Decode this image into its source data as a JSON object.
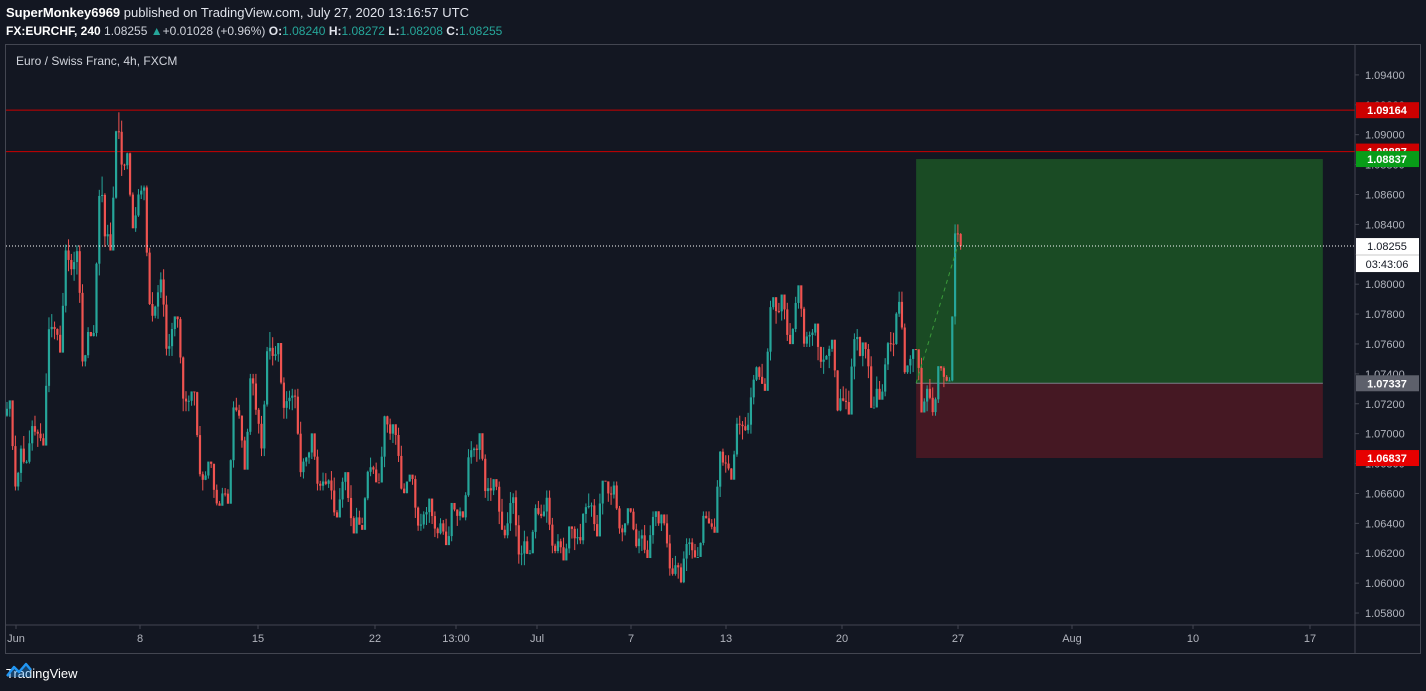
{
  "header": {
    "author": "SuperMonkey6969",
    "published": "published on TradingView.com, July 27, 2020 13:16:57 UTC",
    "symbol": "FX:EURCHF, 240",
    "last": "1.08255",
    "change": "+0.01028 (+0.96%)",
    "o_label": "O:",
    "o_value": "1.08240",
    "h_label": "H:",
    "h_value": "1.08272",
    "l_label": "L:",
    "l_value": "1.08208",
    "c_label": "C:",
    "c_value": "1.08255"
  },
  "footer": {
    "brand": "TradingView"
  },
  "chart_data": {
    "type": "candlestick",
    "title": "Euro / Swiss Franc, 4h, FXCM",
    "ylim": [
      1.0572,
      1.096
    ],
    "y_ticks": [
      "1.09400",
      "1.09200",
      "1.09000",
      "1.08800",
      "1.08600",
      "1.08400",
      "1.08200",
      "1.08000",
      "1.07800",
      "1.07600",
      "1.07400",
      "1.07200",
      "1.07000",
      "1.06800",
      "1.06600",
      "1.06400",
      "1.06200",
      "1.06000",
      "1.05800"
    ],
    "x_ticks": [
      "Jun",
      "8",
      "15",
      "22",
      "13:00",
      "Jul",
      "7",
      "13",
      "20",
      "27",
      "Aug",
      "10",
      "17"
    ],
    "grid": false,
    "colors": {
      "up": "#26a69a",
      "down": "#ef5350",
      "background": "#131722",
      "axis_text": "#b2b5be"
    },
    "horizontal_lines": [
      {
        "price": 1.09164,
        "label": "1.09164",
        "color": "#cc0000"
      },
      {
        "price": 1.08887,
        "label": "1.08887",
        "color": "#cc0000"
      }
    ],
    "current_price": {
      "price": 1.08255,
      "label": "1.08255",
      "countdown": "03:43:06"
    },
    "position": {
      "type": "long",
      "entry": 1.07337,
      "entry_label": "1.07337",
      "target": 1.08837,
      "target_label": "1.08837",
      "stop": 1.06837,
      "stop_label": "1.06837",
      "start": "Jul 25",
      "end": "Aug 18"
    },
    "series": [
      {
        "ohlc_daily_approx": [
          {
            "x": "Jun 1",
            "o": 1.0712,
            "h": 1.0722,
            "l": 1.0662,
            "c": 1.069
          },
          {
            "x": "Jun 2",
            "o": 1.069,
            "h": 1.0712,
            "l": 1.068,
            "c": 1.07
          },
          {
            "x": "Jun 3",
            "o": 1.07,
            "h": 1.078,
            "l": 1.0695,
            "c": 1.077
          },
          {
            "x": "Jun 4",
            "o": 1.077,
            "h": 1.083,
            "l": 1.0758,
            "c": 1.081
          },
          {
            "x": "Jun 5",
            "o": 1.081,
            "h": 1.0826,
            "l": 1.0745,
            "c": 1.0768
          },
          {
            "x": "Jun 6",
            "o": 1.0768,
            "h": 1.0872,
            "l": 1.0765,
            "c": 1.0832
          },
          {
            "x": "Jun 7",
            "o": 1.0832,
            "h": 1.0915,
            "l": 1.0825,
            "c": 1.088
          },
          {
            "x": "Jun 8",
            "o": 1.088,
            "h": 1.0888,
            "l": 1.0835,
            "c": 1.086
          },
          {
            "x": "Jun 9",
            "o": 1.086,
            "h": 1.0866,
            "l": 1.0775,
            "c": 1.0785
          },
          {
            "x": "Jun 10",
            "o": 1.0785,
            "h": 1.081,
            "l": 1.0752,
            "c": 1.077
          },
          {
            "x": "Jun 11",
            "o": 1.077,
            "h": 1.0778,
            "l": 1.0715,
            "c": 1.0722
          },
          {
            "x": "Jun 12",
            "o": 1.0722,
            "h": 1.0728,
            "l": 1.0662,
            "c": 1.0672
          },
          {
            "x": "Jun 13",
            "o": 1.0672,
            "h": 1.068,
            "l": 1.0652,
            "c": 1.066
          },
          {
            "x": "Jun 14",
            "o": 1.066,
            "h": 1.0724,
            "l": 1.0658,
            "c": 1.0712
          },
          {
            "x": "Jun 15",
            "o": 1.0712,
            "h": 1.074,
            "l": 1.068,
            "c": 1.0716
          },
          {
            "x": "Jun 16",
            "o": 1.0716,
            "h": 1.0768,
            "l": 1.0685,
            "c": 1.0752
          },
          {
            "x": "Jun 17",
            "o": 1.0752,
            "h": 1.076,
            "l": 1.071,
            "c": 1.0724
          },
          {
            "x": "Jun 18",
            "o": 1.0724,
            "h": 1.073,
            "l": 1.067,
            "c": 1.0684
          },
          {
            "x": "Jun 19",
            "o": 1.0684,
            "h": 1.0695,
            "l": 1.0662,
            "c": 1.0668
          },
          {
            "x": "Jun 20",
            "o": 1.0668,
            "h": 1.0675,
            "l": 1.0645,
            "c": 1.0656
          },
          {
            "x": "Jun 21",
            "o": 1.0656,
            "h": 1.0672,
            "l": 1.0635,
            "c": 1.0644
          },
          {
            "x": "Jun 22",
            "o": 1.0644,
            "h": 1.0684,
            "l": 1.064,
            "c": 1.0676
          },
          {
            "x": "Jun 23",
            "o": 1.0676,
            "h": 1.0712,
            "l": 1.0668,
            "c": 1.07
          },
          {
            "x": "Jun 24",
            "o": 1.07,
            "h": 1.0704,
            "l": 1.066,
            "c": 1.0668
          },
          {
            "x": "Jun 25",
            "o": 1.0668,
            "h": 1.0672,
            "l": 1.0635,
            "c": 1.0646
          },
          {
            "x": "Jun 26",
            "o": 1.0646,
            "h": 1.0652,
            "l": 1.063,
            "c": 1.064
          },
          {
            "x": "Jun 27",
            "o": 1.064,
            "h": 1.065,
            "l": 1.0628,
            "c": 1.0645
          },
          {
            "x": "Jun 28",
            "o": 1.0645,
            "h": 1.0695,
            "l": 1.0642,
            "c": 1.069
          },
          {
            "x": "Jun 29",
            "o": 1.069,
            "h": 1.07,
            "l": 1.0655,
            "c": 1.0662
          },
          {
            "x": "Jun 30",
            "o": 1.0662,
            "h": 1.0668,
            "l": 1.063,
            "c": 1.064
          },
          {
            "x": "Jul 1",
            "o": 1.064,
            "h": 1.0662,
            "l": 1.0612,
            "c": 1.0628
          },
          {
            "x": "Jul 2",
            "o": 1.0628,
            "h": 1.0655,
            "l": 1.062,
            "c": 1.0645
          },
          {
            "x": "Jul 3",
            "o": 1.0645,
            "h": 1.0662,
            "l": 1.062,
            "c": 1.0628
          },
          {
            "x": "Jul 4",
            "o": 1.0628,
            "h": 1.0638,
            "l": 1.062,
            "c": 1.063
          },
          {
            "x": "Jul 5",
            "o": 1.063,
            "h": 1.066,
            "l": 1.0626,
            "c": 1.0652
          },
          {
            "x": "Jul 6",
            "o": 1.0652,
            "h": 1.0668,
            "l": 1.0635,
            "c": 1.066
          },
          {
            "x": "Jul 7",
            "o": 1.066,
            "h": 1.0668,
            "l": 1.0628,
            "c": 1.064
          },
          {
            "x": "Jul 8",
            "o": 1.064,
            "h": 1.065,
            "l": 1.062,
            "c": 1.0632
          },
          {
            "x": "Jul 9",
            "o": 1.0632,
            "h": 1.0648,
            "l": 1.062,
            "c": 1.064
          },
          {
            "x": "Jul 10",
            "o": 1.064,
            "h": 1.0646,
            "l": 1.0605,
            "c": 1.0612
          },
          {
            "x": "Jul 11",
            "o": 1.0612,
            "h": 1.063,
            "l": 1.06,
            "c": 1.0622
          },
          {
            "x": "Jul 12",
            "o": 1.0622,
            "h": 1.0648,
            "l": 1.0618,
            "c": 1.064
          },
          {
            "x": "Jul 13",
            "o": 1.064,
            "h": 1.069,
            "l": 1.0636,
            "c": 1.068
          },
          {
            "x": "Jul 14",
            "o": 1.068,
            "h": 1.0712,
            "l": 1.0672,
            "c": 1.0705
          },
          {
            "x": "Jul 15",
            "o": 1.0705,
            "h": 1.0745,
            "l": 1.07,
            "c": 1.0738
          },
          {
            "x": "Jul 16",
            "o": 1.0738,
            "h": 1.079,
            "l": 1.0732,
            "c": 1.0782
          },
          {
            "x": "Jul 17",
            "o": 1.0782,
            "h": 1.0792,
            "l": 1.0762,
            "c": 1.077
          },
          {
            "x": "Jul 18",
            "o": 1.077,
            "h": 1.0796,
            "l": 1.0758,
            "c": 1.0766
          },
          {
            "x": "Jul 19",
            "o": 1.0766,
            "h": 1.077,
            "l": 1.074,
            "c": 1.0752
          },
          {
            "x": "Jul 20",
            "o": 1.0752,
            "h": 1.076,
            "l": 1.0715,
            "c": 1.0722
          },
          {
            "x": "Jul 21",
            "o": 1.0722,
            "h": 1.077,
            "l": 1.0716,
            "c": 1.0752
          },
          {
            "x": "Jul 22",
            "o": 1.0752,
            "h": 1.076,
            "l": 1.0718,
            "c": 1.073
          },
          {
            "x": "Jul 23",
            "o": 1.073,
            "h": 1.0768,
            "l": 1.0725,
            "c": 1.076
          },
          {
            "x": "Jul 24",
            "o": 1.076,
            "h": 1.0795,
            "l": 1.074,
            "c": 1.075
          },
          {
            "x": "Jul 25",
            "o": 1.075,
            "h": 1.0756,
            "l": 1.0715,
            "c": 1.073
          },
          {
            "x": "Jul 26",
            "o": 1.073,
            "h": 1.0745,
            "l": 1.0712,
            "c": 1.0738
          },
          {
            "x": "Jul 27",
            "o": 1.0738,
            "h": 1.084,
            "l": 1.0735,
            "c": 1.08255
          }
        ]
      }
    ]
  }
}
